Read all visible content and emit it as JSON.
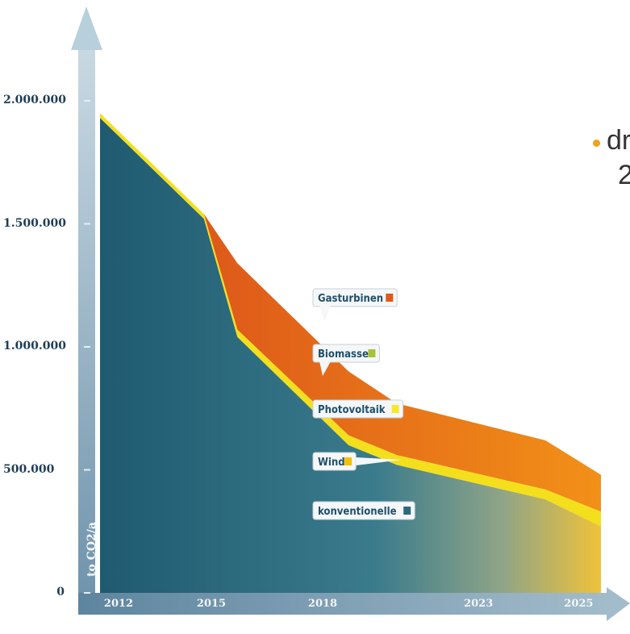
{
  "chart_data": {
    "type": "area",
    "title": "",
    "xlabel": "",
    "ylabel": "to CO2/a",
    "x": [
      "2012",
      "2015",
      "2018",
      "2023",
      "2025"
    ],
    "ylim": [
      0,
      2000000
    ],
    "yticks": [
      "0",
      "500.000",
      "1.000.000",
      "1.500.000",
      "2.000.000"
    ],
    "grid": false,
    "series": [
      {
        "name": "konventionelle",
        "color": "#2d6a7e"
      },
      {
        "name": "Wind",
        "color": "#f2c200"
      },
      {
        "name": "Photovoltaik",
        "color": "#f7e733"
      },
      {
        "name": "Biomasse",
        "color": "#a8c23a"
      },
      {
        "name": "Gasturbinen",
        "color": "#e4571c"
      }
    ],
    "boundaries": {
      "x_values": [
        2012,
        2014.8,
        2015.7,
        2018.7,
        2020,
        2024,
        2025.5
      ],
      "konventionelle_top": [
        1930000,
        1520000,
        1040000,
        600000,
        520000,
        380000,
        270000
      ],
      "green_top": [
        1950000,
        1540000,
        1070000,
        640000,
        560000,
        420000,
        330000
      ],
      "gasturbinen_top": [
        1950000,
        1540000,
        1340000,
        900000,
        770000,
        620000,
        480000
      ]
    }
  },
  "side_text": {
    "line1": "dr",
    "line2": "2"
  }
}
